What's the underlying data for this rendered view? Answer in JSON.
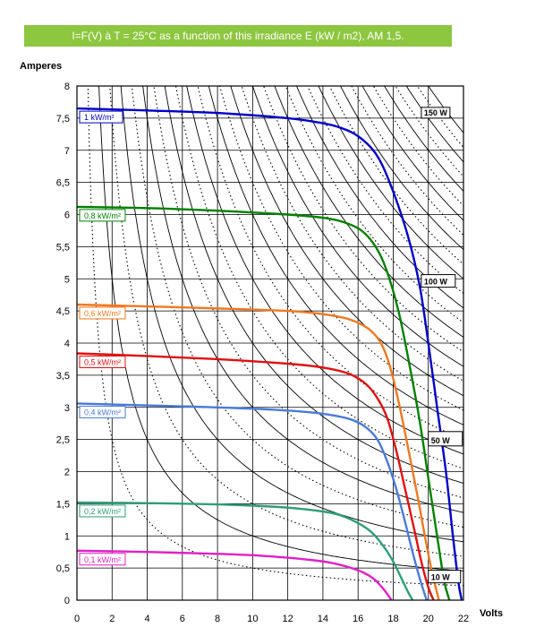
{
  "chart_data": {
    "type": "line",
    "title": "I=F(V) à T = 25°C  as a function of this irradiance E (kW / m2), AM 1,5.",
    "xlabel": "Volts",
    "ylabel": "Amperes",
    "xlim": [
      0,
      22
    ],
    "ylim": [
      0,
      8
    ],
    "x_ticks": [
      "0",
      "2",
      "4",
      "6",
      "8",
      "10",
      "12",
      "14",
      "16",
      "18",
      "20",
      "22"
    ],
    "y_ticks": [
      "0",
      "0,5",
      "1",
      "1,5",
      "2",
      "2,5",
      "3",
      "3,5",
      "4",
      "4,5",
      "5",
      "5,5",
      "6",
      "6,5",
      "7",
      "7,5",
      "8"
    ],
    "grid": true,
    "series": [
      {
        "name": "1 kW/m²",
        "color": "#0000c8",
        "x": [
          0,
          4,
          8,
          12,
          14,
          15,
          16,
          17,
          17.8,
          18.8,
          19.5,
          20.0,
          20.5,
          21.0,
          21.4,
          21.7,
          21.9
        ],
        "y": [
          7.65,
          7.62,
          7.58,
          7.5,
          7.42,
          7.35,
          7.22,
          6.95,
          6.5,
          5.7,
          4.9,
          4.0,
          3.0,
          2.0,
          1.0,
          0.3,
          0
        ]
      },
      {
        "name": "0,8 kW/m²",
        "color": "#008000",
        "x": [
          0,
          4,
          8,
          12,
          14,
          15.2,
          16.2,
          17,
          17.6,
          18.3,
          18.9,
          19.5,
          20.0,
          20.5,
          20.9,
          21.2
        ],
        "y": [
          6.12,
          6.1,
          6.06,
          6.0,
          5.95,
          5.88,
          5.75,
          5.5,
          5.15,
          4.5,
          3.7,
          2.8,
          1.9,
          1.0,
          0.3,
          0
        ]
      },
      {
        "name": "0,6 kW/m²",
        "color": "#f07820",
        "x": [
          0,
          4,
          8,
          12,
          14,
          15.5,
          16.6,
          17.3,
          17.8,
          18.3,
          18.9,
          19.4,
          19.8,
          20.2,
          20.6
        ],
        "y": [
          4.6,
          4.57,
          4.54,
          4.5,
          4.45,
          4.37,
          4.22,
          4.0,
          3.65,
          3.1,
          2.3,
          1.6,
          1.0,
          0.45,
          0
        ]
      },
      {
        "name": "0,5 kW/m²",
        "color": "#e01010",
        "x": [
          0,
          4,
          8,
          12,
          14,
          15.5,
          16.5,
          17.2,
          17.7,
          18.2,
          18.7,
          19.2,
          19.6,
          20.0,
          20.3
        ],
        "y": [
          3.84,
          3.8,
          3.75,
          3.68,
          3.62,
          3.52,
          3.35,
          3.1,
          2.8,
          2.3,
          1.7,
          1.1,
          0.6,
          0.2,
          0
        ]
      },
      {
        "name": "0,4 kW/m²",
        "color": "#4a7ad8",
        "x": [
          0,
          4,
          8,
          12,
          14,
          15.5,
          16.4,
          17.1,
          17.6,
          18.1,
          18.6,
          19.1,
          19.5,
          19.9
        ],
        "y": [
          3.06,
          3.03,
          3.0,
          2.95,
          2.9,
          2.82,
          2.7,
          2.5,
          2.2,
          1.8,
          1.3,
          0.75,
          0.35,
          0
        ]
      },
      {
        "name": "0,2 kW/m²",
        "color": "#2e9e78",
        "x": [
          0,
          4,
          8,
          10,
          12,
          14,
          15,
          16,
          16.8,
          17.5,
          18.0,
          18.4,
          18.8,
          19.1
        ],
        "y": [
          1.52,
          1.51,
          1.49,
          1.47,
          1.44,
          1.38,
          1.32,
          1.2,
          1.05,
          0.82,
          0.6,
          0.38,
          0.15,
          0
        ]
      },
      {
        "name": "0,1 kW/m²",
        "color": "#e020c8",
        "x": [
          0,
          4,
          8,
          10,
          12,
          13.5,
          14.5,
          15.5,
          16.3,
          16.9,
          17.3,
          17.6,
          17.9
        ],
        "y": [
          0.77,
          0.75,
          0.72,
          0.7,
          0.66,
          0.62,
          0.58,
          0.51,
          0.43,
          0.33,
          0.22,
          0.12,
          0
        ]
      }
    ],
    "power_labels": [
      "150 W",
      "100 W",
      "50 W",
      "10 W"
    ]
  }
}
